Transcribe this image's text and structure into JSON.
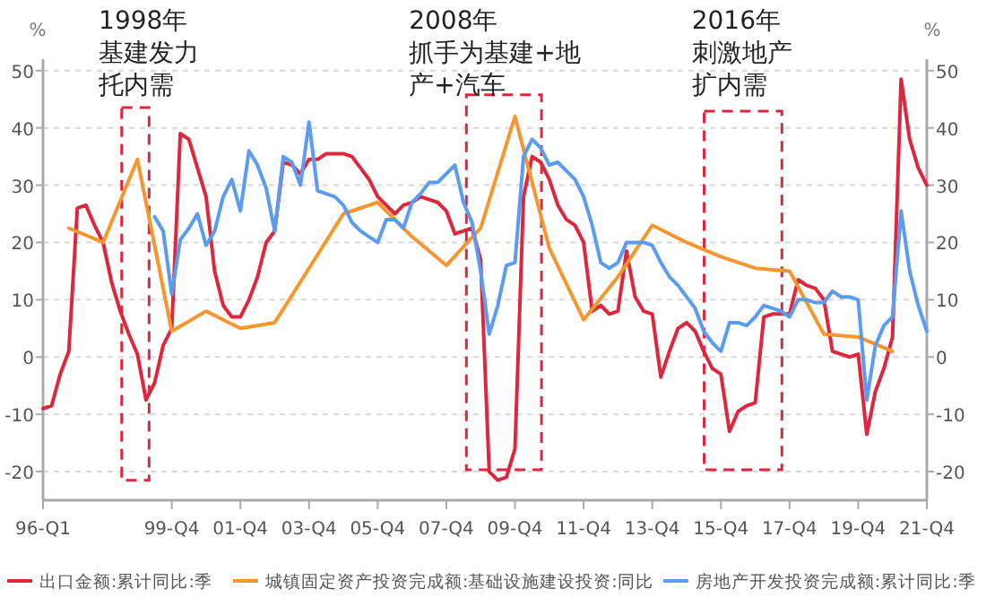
{
  "chart_data": {
    "type": "line",
    "ylabel": "%",
    "y2label": "%",
    "grid": "y",
    "legend": "bottom",
    "marker": "none",
    "line_style": "solid",
    "categories": [
      "96-Q1",
      null,
      null,
      null,
      null,
      null,
      null,
      null,
      null,
      null,
      null,
      null,
      null,
      null,
      null,
      "99-Q4",
      null,
      null,
      null,
      null,
      null,
      null,
      null,
      "01-Q4",
      null,
      null,
      null,
      null,
      null,
      null,
      null,
      "03-Q4",
      null,
      null,
      null,
      null,
      null,
      null,
      null,
      "05-Q4",
      null,
      null,
      null,
      null,
      null,
      null,
      null,
      "07-Q4",
      null,
      null,
      null,
      null,
      null,
      null,
      null,
      "09-Q4",
      null,
      null,
      null,
      null,
      null,
      null,
      null,
      "11-Q4",
      null,
      null,
      null,
      null,
      null,
      null,
      null,
      "13-Q4",
      null,
      null,
      null,
      null,
      null,
      null,
      null,
      "15-Q4",
      null,
      null,
      null,
      null,
      null,
      null,
      null,
      "17-Q4",
      null,
      null,
      null,
      null,
      null,
      null,
      null,
      "19-Q4",
      null,
      null,
      null,
      null,
      null,
      null,
      null,
      "21-Q4"
    ],
    "ylim": [
      -25,
      52
    ],
    "yticks": [
      -20,
      -10,
      0,
      10,
      20,
      30,
      40,
      50
    ],
    "y2lim": [
      -25,
      52
    ],
    "y2ticks": [
      -20,
      -10,
      0,
      10,
      20,
      30,
      40,
      50
    ],
    "series": [
      {
        "name": "出口金额:累计同比:季",
        "color": "#e0263c",
        "values": [
          -9,
          -8.5,
          -3,
          1,
          26,
          26.5,
          23,
          20,
          13,
          8,
          4,
          0.5,
          -7.5,
          -4.5,
          2,
          5,
          39,
          38,
          33,
          28,
          15,
          9,
          7,
          7,
          10,
          14,
          20,
          22,
          34,
          33.5,
          32,
          34.5,
          34.5,
          35.5,
          35.5,
          35.5,
          35,
          33,
          31,
          28,
          26.5,
          25,
          26.5,
          27,
          28,
          27.5,
          27,
          25.5,
          21.5,
          22,
          22.5,
          17,
          -20,
          -21.5,
          -21,
          -16,
          28,
          35,
          34,
          31,
          26.5,
          24,
          23,
          20,
          8,
          9,
          7.5,
          8,
          18.5,
          10.5,
          8,
          7.5,
          -3.5,
          1,
          5,
          6,
          4.5,
          1,
          -2,
          -3,
          -13,
          -9.5,
          -8.5,
          -8,
          7,
          7.5,
          7.5,
          7.5,
          13.5,
          12.5,
          12,
          10,
          1,
          0.5,
          0,
          0.5,
          -13.5,
          -6,
          -2,
          3.5,
          48.5,
          38,
          33,
          30
        ]
      },
      {
        "name": "城镇固定资产投资完成额:基础设施建设投资:同比",
        "color": "#f7962f",
        "values": [
          null,
          null,
          null,
          22.5,
          null,
          null,
          null,
          20,
          null,
          null,
          null,
          34.5,
          null,
          null,
          null,
          4.5,
          null,
          null,
          null,
          8,
          null,
          null,
          null,
          5,
          null,
          null,
          null,
          6,
          null,
          null,
          null,
          15.5,
          null,
          null,
          null,
          25,
          null,
          null,
          null,
          27,
          null,
          null,
          null,
          21,
          null,
          null,
          null,
          16,
          null,
          null,
          null,
          22.5,
          null,
          null,
          null,
          42,
          null,
          null,
          null,
          19,
          null,
          null,
          null,
          6.5,
          null,
          null,
          null,
          14,
          null,
          null,
          null,
          23,
          null,
          null,
          null,
          20,
          null,
          null,
          null,
          17.5,
          null,
          null,
          null,
          15.5,
          null,
          null,
          null,
          15,
          null,
          null,
          null,
          4,
          null,
          null,
          null,
          3.5,
          null,
          null,
          null,
          1,
          null,
          null,
          null,
          null
        ]
      },
      {
        "name": "房地产开发投资完成额:累计同比:季",
        "color": "#5b9bf0",
        "values": [
          null,
          null,
          null,
          null,
          null,
          null,
          null,
          null,
          null,
          null,
          null,
          null,
          null,
          24.5,
          22,
          11,
          20.5,
          22.5,
          25,
          19.5,
          22,
          28,
          31,
          25.5,
          36,
          33.5,
          29.5,
          22,
          35,
          34,
          30,
          41,
          29,
          28.5,
          28,
          26.5,
          23.5,
          22,
          21,
          20,
          24,
          24,
          22.5,
          27,
          28.5,
          30.5,
          30.5,
          32,
          33.5,
          27,
          23.5,
          15,
          4,
          9,
          16,
          16.5,
          35,
          38,
          36.5,
          33.5,
          34,
          32.5,
          31,
          28,
          23,
          16.5,
          15.5,
          16.5,
          20,
          20,
          20,
          19.5,
          16.5,
          14,
          12.5,
          10.5,
          8.5,
          4.5,
          2.5,
          1,
          6,
          6,
          5.5,
          7,
          9,
          8.5,
          8,
          7,
          10,
          10,
          9.5,
          9.5,
          11.5,
          10.5,
          10.5,
          10,
          -7.5,
          2,
          5.5,
          7,
          25.5,
          15,
          9,
          4.5
        ]
      }
    ],
    "annotations": [
      "1998年",
      "基建发力",
      "托内需",
      "2008年",
      "抓手为基建+地",
      "产+汽车",
      "2016年",
      "刺激地产",
      "扩内需"
    ]
  }
}
